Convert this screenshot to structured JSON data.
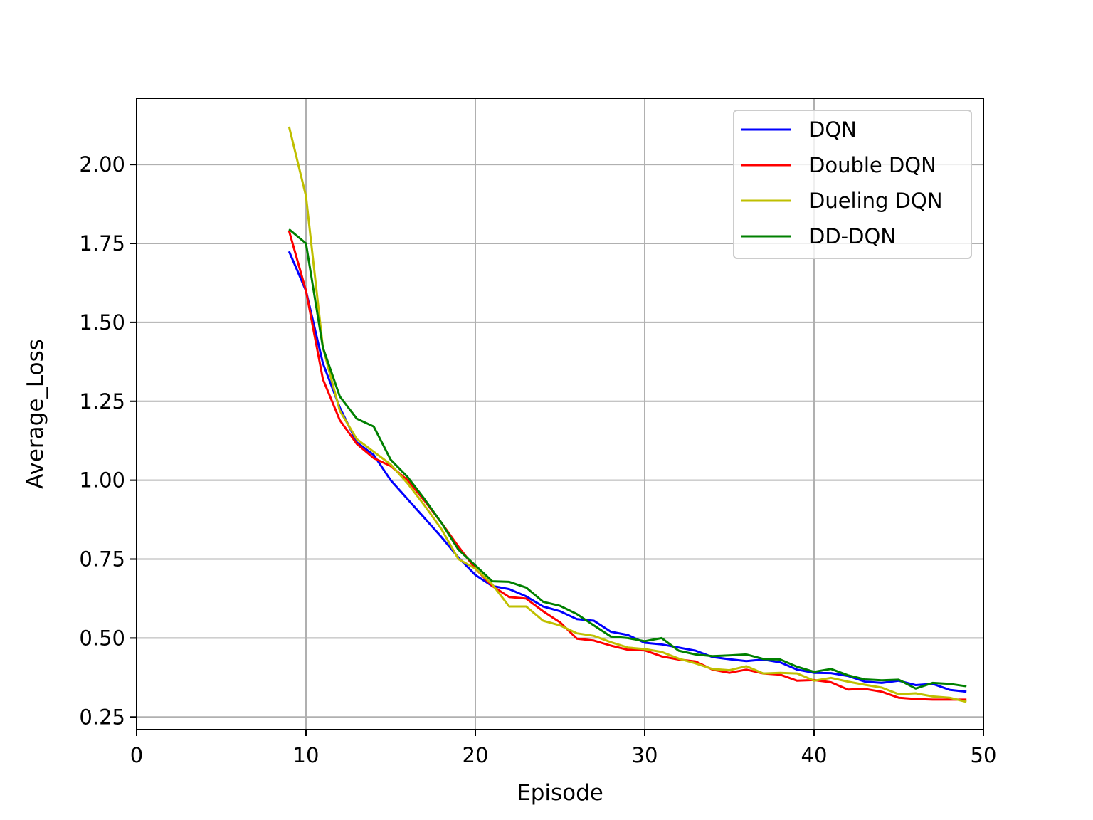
{
  "chart_data": {
    "type": "line",
    "title": "",
    "xlabel": "Episode",
    "ylabel": "Average_Loss",
    "xlim": [
      0,
      50
    ],
    "ylim": [
      0.21,
      2.21
    ],
    "xticks": [
      "0",
      "10",
      "20",
      "30",
      "40",
      "50"
    ],
    "yticks": [
      "0.25",
      "0.50",
      "0.75",
      "1.00",
      "1.25",
      "1.50",
      "1.75",
      "2.00"
    ],
    "grid": true,
    "legend_position": "top-right",
    "x": [
      9,
      10,
      11,
      12,
      13,
      14,
      15,
      16,
      17,
      18,
      19,
      20,
      21,
      22,
      23,
      24,
      25,
      26,
      27,
      28,
      29,
      30,
      31,
      32,
      33,
      34,
      35,
      36,
      37,
      38,
      39,
      40,
      41,
      42,
      43,
      44,
      45,
      46,
      47,
      48,
      49
    ],
    "series": [
      {
        "name": "DQN",
        "color": "#0000ff",
        "values": [
          1.725,
          1.6,
          1.37,
          1.23,
          1.12,
          1.08,
          1.0,
          0.94,
          0.88,
          0.82,
          0.755,
          0.7,
          0.665,
          0.655,
          0.632,
          0.6,
          0.585,
          0.56,
          0.555,
          0.52,
          0.51,
          0.485,
          0.48,
          0.47,
          0.46,
          0.44,
          0.433,
          0.427,
          0.432,
          0.423,
          0.4,
          0.39,
          0.389,
          0.38,
          0.362,
          0.358,
          0.365,
          0.351,
          0.355,
          0.336,
          0.33
        ]
      },
      {
        "name": "Double DQN",
        "color": "#ff0000",
        "values": [
          1.79,
          1.6,
          1.32,
          1.19,
          1.115,
          1.07,
          1.045,
          1.0,
          0.935,
          0.865,
          0.79,
          0.72,
          0.665,
          0.63,
          0.625,
          0.585,
          0.55,
          0.498,
          0.492,
          0.476,
          0.463,
          0.461,
          0.442,
          0.432,
          0.426,
          0.4,
          0.39,
          0.4,
          0.388,
          0.384,
          0.365,
          0.367,
          0.36,
          0.337,
          0.339,
          0.33,
          0.311,
          0.307,
          0.305,
          0.305,
          0.305
        ]
      },
      {
        "name": "Dueling DQN",
        "color": "#bfbf00",
        "values": [
          2.12,
          1.9,
          1.42,
          1.22,
          1.13,
          1.09,
          1.05,
          0.99,
          0.92,
          0.845,
          0.75,
          0.72,
          0.67,
          0.6,
          0.6,
          0.555,
          0.54,
          0.515,
          0.507,
          0.487,
          0.47,
          0.465,
          0.456,
          0.435,
          0.42,
          0.402,
          0.398,
          0.411,
          0.388,
          0.39,
          0.388,
          0.365,
          0.374,
          0.362,
          0.352,
          0.343,
          0.322,
          0.325,
          0.315,
          0.311,
          0.298
        ]
      },
      {
        "name": "DD-DQN",
        "color": "#008000",
        "values": [
          1.795,
          1.75,
          1.42,
          1.265,
          1.195,
          1.17,
          1.065,
          1.01,
          0.94,
          0.865,
          0.78,
          0.73,
          0.68,
          0.678,
          0.66,
          0.615,
          0.602,
          0.576,
          0.54,
          0.505,
          0.5,
          0.49,
          0.5,
          0.46,
          0.448,
          0.443,
          0.445,
          0.448,
          0.434,
          0.432,
          0.409,
          0.393,
          0.402,
          0.382,
          0.369,
          0.366,
          0.368,
          0.34,
          0.358,
          0.355,
          0.347
        ]
      }
    ]
  }
}
